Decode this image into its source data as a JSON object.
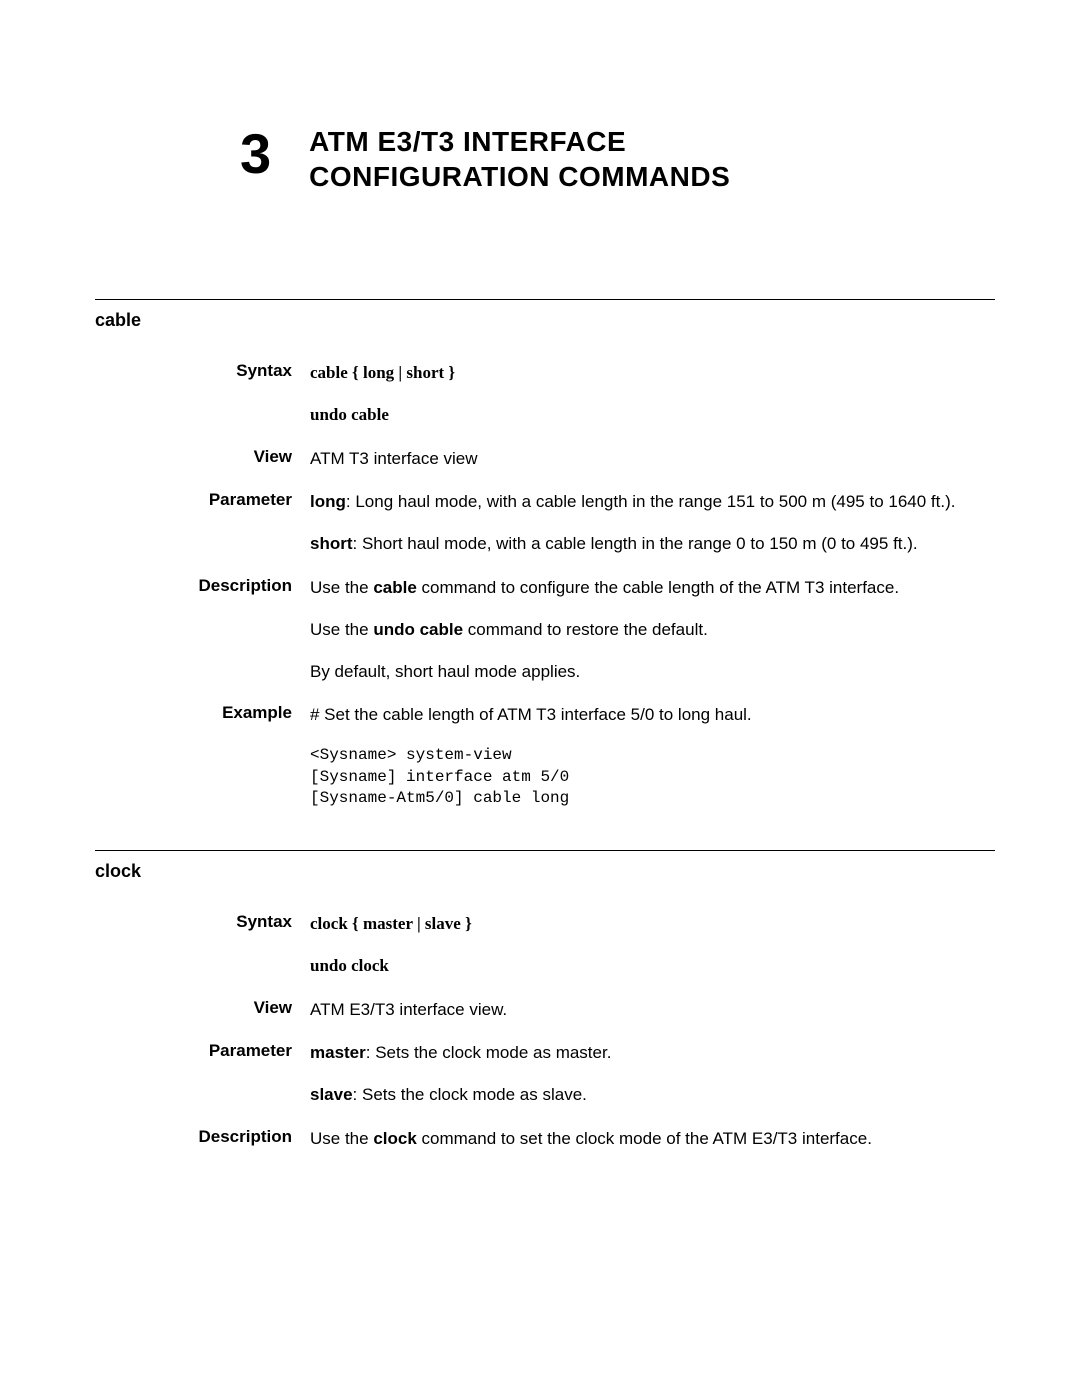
{
  "chapter": {
    "number": "3",
    "title_line1": "ATM E3/T3 INTERFACE",
    "title_line2": "CONFIGURATION COMMANDS"
  },
  "sections": {
    "cable": {
      "heading": "cable",
      "syntax_label": "Syntax",
      "syntax_text": "cable { long | short }",
      "undo_text": "undo cable",
      "view_label": "View",
      "view_text": "ATM T3 interface view",
      "parameter_label": "Parameter",
      "param_long_name": "long",
      "param_long_desc": ": Long haul mode, with a cable length in the range 151 to 500 m (495 to 1640 ft.).",
      "param_short_name": "short",
      "param_short_desc": ": Short haul mode, with a cable length in the range 0 to 150 m (0 to 495 ft.).",
      "description_label": "Description",
      "desc_p1_pre": "Use the ",
      "desc_p1_cmd": "cable",
      "desc_p1_post": " command to configure the cable length of the ATM T3 interface.",
      "desc_p2_pre": "Use the ",
      "desc_p2_cmd": "undo cable",
      "desc_p2_post": " command to restore the default.",
      "desc_p3": "By default, short haul mode applies.",
      "example_label": "Example",
      "example_intro": "# Set the cable length of ATM T3 interface 5/0 to long haul.",
      "example_code": "<Sysname> system-view\n[Sysname] interface atm 5/0\n[Sysname-Atm5/0] cable long"
    },
    "clock": {
      "heading": "clock",
      "syntax_label": "Syntax",
      "syntax_text": "clock { master | slave }",
      "undo_text": "undo clock",
      "view_label": "View",
      "view_text": "ATM E3/T3 interface view.",
      "parameter_label": "Parameter",
      "param_master_name": "master",
      "param_master_desc": ": Sets the clock mode as master.",
      "param_slave_name": "slave",
      "param_slave_desc": ": Sets the clock mode as slave.",
      "description_label": "Description",
      "desc_p1_pre": "Use the ",
      "desc_p1_cmd": "clock",
      "desc_p1_post": " command to set the clock mode of the ATM E3/T3 interface."
    }
  }
}
